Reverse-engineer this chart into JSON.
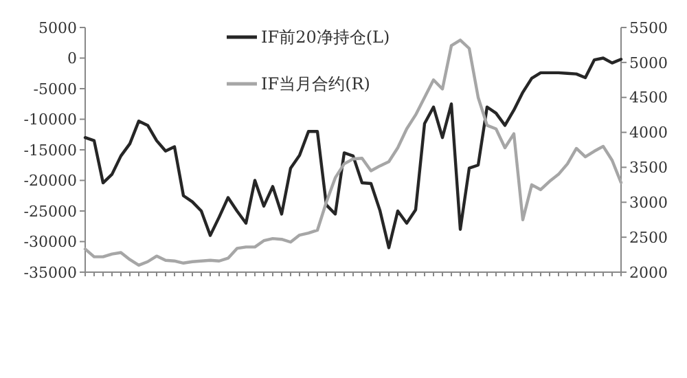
{
  "chart_data": {
    "type": "line",
    "categories": [
      null,
      null,
      null,
      null,
      null,
      null,
      null,
      null,
      null,
      null,
      null,
      null,
      null,
      null,
      null,
      null,
      null,
      null,
      null,
      null,
      null,
      null,
      null,
      null,
      null,
      null,
      null,
      null,
      null,
      null,
      null,
      null,
      null,
      null,
      null,
      null,
      null,
      null,
      null,
      null,
      null,
      null,
      null,
      null,
      null,
      null,
      null,
      null,
      null,
      null,
      null,
      null,
      null,
      null,
      null,
      null,
      null,
      null,
      null,
      null,
      null
    ],
    "series": [
      {
        "name": "IF前20净持仓(L)",
        "color": "#262626",
        "values": [
          -13000,
          -13500,
          -20400,
          -19000,
          -16000,
          -14000,
          -10300,
          -11000,
          -13500,
          -15200,
          -14500,
          -22500,
          -23500,
          -25000,
          -29000,
          -26000,
          -22800,
          -25000,
          -27000,
          -20000,
          -24200,
          -21000,
          -25500,
          -18000,
          -15900,
          -12000,
          -12000,
          -24000,
          -25500,
          -15500,
          -16000,
          -20400,
          -20500,
          -24900,
          -31000,
          -25000,
          -27000,
          -24800,
          -10700,
          -8000,
          -13000,
          -7500,
          -28000,
          -18000,
          -17500,
          -8000,
          -9000,
          -11000,
          -8500,
          -5600,
          -3300,
          -2400,
          -2400,
          -2400,
          -2500,
          -2600,
          -3200,
          -300,
          0,
          -800,
          -200
        ]
      },
      {
        "name": "IF当月合约(R)",
        "color": "#a6a6a6",
        "axis": "y2",
        "values": [
          2330,
          2220,
          2220,
          2260,
          2280,
          2180,
          2100,
          2150,
          2230,
          2170,
          2160,
          2130,
          2150,
          2160,
          2170,
          2160,
          2200,
          2340,
          2360,
          2360,
          2450,
          2480,
          2470,
          2430,
          2530,
          2560,
          2600,
          3000,
          3350,
          3550,
          3620,
          3630,
          3450,
          3520,
          3580,
          3780,
          4050,
          4250,
          4500,
          4750,
          4620,
          5240,
          5320,
          5200,
          4500,
          4100,
          4050,
          3780,
          3980,
          2750,
          3250,
          3180,
          3300,
          3400,
          3550,
          3770,
          3650,
          3730,
          3800,
          3600,
          3280
        ]
      }
    ],
    "ylim": [
      -35000,
      5000
    ],
    "yticks": [
      -35000,
      -30000,
      -25000,
      -20000,
      -15000,
      -10000,
      -5000,
      0,
      5000
    ],
    "y2lim": [
      2000,
      5500
    ],
    "y2ticks": [
      2000,
      2500,
      3000,
      3500,
      4000,
      4500,
      5000,
      5500
    ],
    "legend": "top",
    "grid": false
  }
}
